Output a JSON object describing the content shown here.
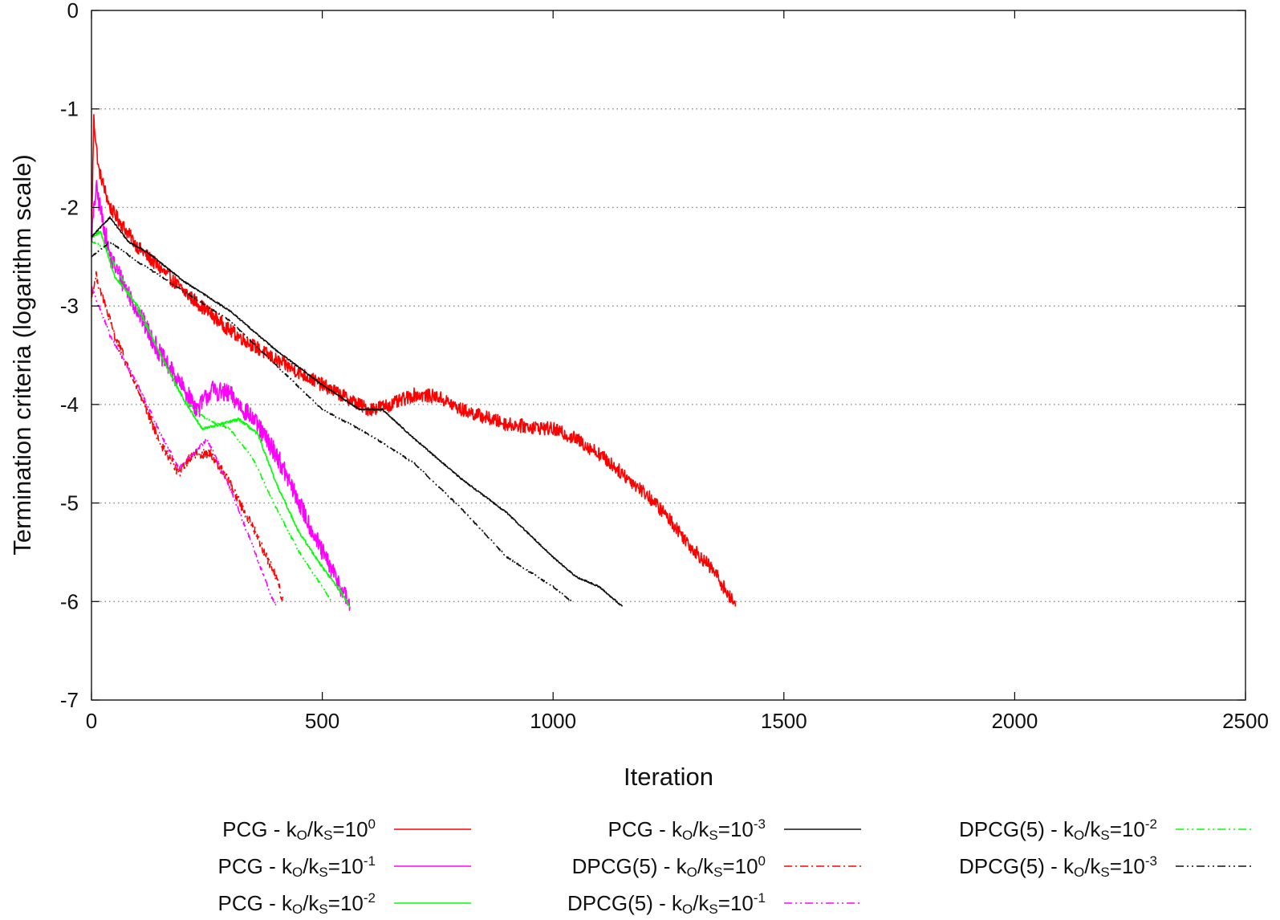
{
  "chart_data": {
    "type": "line",
    "title": "",
    "xlabel": "Iteration",
    "ylabel": "Termination criteria (logarithm scale)",
    "xlim": [
      0,
      2500
    ],
    "ylim": [
      -7,
      0
    ],
    "x_ticks": [
      "0",
      "500",
      "1000",
      "1500",
      "2000",
      "2500"
    ],
    "y_ticks": [
      "0",
      "-1",
      "-2",
      "-3",
      "-4",
      "-5",
      "-6",
      "-7"
    ],
    "grid": "horizontal dotted",
    "legend_position": "bottom",
    "series": [
      {
        "name": "PCG - kO/kS=10^0",
        "label": {
          "pre": "PCG - k",
          "sub1": "O",
          "mid": "/k",
          "sub2": "S",
          "eq": "=10",
          "sup": "0"
        },
        "color": "#ff0000",
        "dash": "solid",
        "noise": 0.07,
        "points": [
          [
            0,
            -2.3
          ],
          [
            5,
            -1.1
          ],
          [
            15,
            -1.6
          ],
          [
            40,
            -2.0
          ],
          [
            100,
            -2.4
          ],
          [
            200,
            -2.85
          ],
          [
            300,
            -3.25
          ],
          [
            400,
            -3.55
          ],
          [
            500,
            -3.8
          ],
          [
            600,
            -4.05
          ],
          [
            650,
            -4.0
          ],
          [
            700,
            -3.9
          ],
          [
            750,
            -3.92
          ],
          [
            800,
            -4.05
          ],
          [
            900,
            -4.2
          ],
          [
            1000,
            -4.25
          ],
          [
            1050,
            -4.35
          ],
          [
            1100,
            -4.5
          ],
          [
            1150,
            -4.7
          ],
          [
            1200,
            -4.9
          ],
          [
            1250,
            -5.15
          ],
          [
            1300,
            -5.45
          ],
          [
            1350,
            -5.7
          ],
          [
            1395,
            -6.05
          ]
        ]
      },
      {
        "name": "PCG - kO/kS=10^-1",
        "label": {
          "pre": "PCG - k",
          "sub1": "O",
          "mid": "/k",
          "sub2": "S",
          "eq": "=10",
          "sup": "-1"
        },
        "color": "#ff00ff",
        "dash": "solid",
        "noise": 0.1,
        "points": [
          [
            0,
            -2.3
          ],
          [
            10,
            -1.8
          ],
          [
            40,
            -2.5
          ],
          [
            100,
            -3.05
          ],
          [
            150,
            -3.5
          ],
          [
            200,
            -3.85
          ],
          [
            230,
            -4.05
          ],
          [
            260,
            -3.85
          ],
          [
            300,
            -3.9
          ],
          [
            350,
            -4.15
          ],
          [
            400,
            -4.5
          ],
          [
            450,
            -5.0
          ],
          [
            500,
            -5.5
          ],
          [
            540,
            -5.85
          ],
          [
            560,
            -6.05
          ]
        ]
      },
      {
        "name": "PCG - kO/kS=10^-2",
        "label": {
          "pre": "PCG - k",
          "sub1": "O",
          "mid": "/k",
          "sub2": "S",
          "eq": "=10",
          "sup": "-2"
        },
        "color": "#00ff00",
        "dash": "solid",
        "noise": 0.015,
        "points": [
          [
            0,
            -2.3
          ],
          [
            20,
            -2.25
          ],
          [
            50,
            -2.7
          ],
          [
            100,
            -3.0
          ],
          [
            150,
            -3.5
          ],
          [
            200,
            -3.95
          ],
          [
            240,
            -4.25
          ],
          [
            280,
            -4.2
          ],
          [
            320,
            -4.15
          ],
          [
            360,
            -4.3
          ],
          [
            400,
            -4.8
          ],
          [
            450,
            -5.3
          ],
          [
            500,
            -5.65
          ],
          [
            540,
            -5.9
          ],
          [
            560,
            -6.05
          ]
        ]
      },
      {
        "name": "PCG - kO/kS=10^-3",
        "label": {
          "pre": "PCG - k",
          "sub1": "O",
          "mid": "/k",
          "sub2": "S",
          "eq": "=10",
          "sup": "-3"
        },
        "color": "#111111",
        "dash": "solid",
        "noise": 0.008,
        "points": [
          [
            0,
            -2.3
          ],
          [
            40,
            -2.1
          ],
          [
            80,
            -2.35
          ],
          [
            120,
            -2.45
          ],
          [
            200,
            -2.75
          ],
          [
            300,
            -3.05
          ],
          [
            400,
            -3.45
          ],
          [
            500,
            -3.8
          ],
          [
            580,
            -4.05
          ],
          [
            630,
            -4.05
          ],
          [
            700,
            -4.35
          ],
          [
            800,
            -4.75
          ],
          [
            900,
            -5.1
          ],
          [
            1000,
            -5.55
          ],
          [
            1050,
            -5.75
          ],
          [
            1100,
            -5.85
          ],
          [
            1150,
            -6.05
          ]
        ]
      },
      {
        "name": "DPCG(5) - kO/kS=10^0",
        "label": {
          "pre": "DPCG(5) - k",
          "sub1": "O",
          "mid": "/k",
          "sub2": "S",
          "eq": "=10",
          "sup": "0"
        },
        "color": "#ff0000",
        "dash": "10 4 2 4",
        "noise": 0.05,
        "points": [
          [
            0,
            -2.9
          ],
          [
            10,
            -2.7
          ],
          [
            50,
            -3.3
          ],
          [
            100,
            -3.85
          ],
          [
            150,
            -4.4
          ],
          [
            190,
            -4.7
          ],
          [
            220,
            -4.5
          ],
          [
            260,
            -4.5
          ],
          [
            300,
            -4.8
          ],
          [
            350,
            -5.25
          ],
          [
            400,
            -5.75
          ],
          [
            415,
            -6.0
          ]
        ]
      },
      {
        "name": "DPCG(5) - kO/kS=10^-1",
        "label": {
          "pre": "DPCG(5) - k",
          "sub1": "O",
          "mid": "/k",
          "sub2": "S",
          "eq": "=10",
          "sup": "-1"
        },
        "color": "#ff00ff",
        "dash": "10 4 2 4 2 4",
        "noise": 0.02,
        "points": [
          [
            0,
            -2.8
          ],
          [
            40,
            -3.3
          ],
          [
            100,
            -3.8
          ],
          [
            150,
            -4.3
          ],
          [
            190,
            -4.65
          ],
          [
            220,
            -4.5
          ],
          [
            250,
            -4.35
          ],
          [
            300,
            -4.85
          ],
          [
            350,
            -5.45
          ],
          [
            390,
            -5.95
          ],
          [
            400,
            -6.05
          ]
        ]
      },
      {
        "name": "DPCG(5) - kO/kS=10^-2",
        "label": {
          "pre": "DPCG(5) - k",
          "sub1": "O",
          "mid": "/k",
          "sub2": "S",
          "eq": "=10",
          "sup": "-2"
        },
        "color": "#00ff00",
        "dash": "10 4 2 4 2 4",
        "noise": 0.01,
        "points": [
          [
            0,
            -2.35
          ],
          [
            30,
            -2.4
          ],
          [
            80,
            -2.85
          ],
          [
            150,
            -3.5
          ],
          [
            200,
            -3.95
          ],
          [
            250,
            -4.15
          ],
          [
            300,
            -4.25
          ],
          [
            350,
            -4.55
          ],
          [
            400,
            -5.05
          ],
          [
            450,
            -5.5
          ],
          [
            500,
            -5.85
          ],
          [
            520,
            -6.0
          ]
        ]
      },
      {
        "name": "DPCG(5) - kO/kS=10^-3",
        "label": {
          "pre": "DPCG(5) - k",
          "sub1": "O",
          "mid": "/k",
          "sub2": "S",
          "eq": "=10",
          "sup": "-3"
        },
        "color": "#111111",
        "dash": "10 4 2 4 2 4",
        "noise": 0.008,
        "points": [
          [
            0,
            -2.5
          ],
          [
            40,
            -2.35
          ],
          [
            100,
            -2.55
          ],
          [
            200,
            -2.85
          ],
          [
            300,
            -3.15
          ],
          [
            400,
            -3.6
          ],
          [
            500,
            -4.05
          ],
          [
            600,
            -4.3
          ],
          [
            700,
            -4.6
          ],
          [
            800,
            -5.05
          ],
          [
            900,
            -5.55
          ],
          [
            1000,
            -5.85
          ],
          [
            1040,
            -6.0
          ]
        ]
      }
    ]
  }
}
